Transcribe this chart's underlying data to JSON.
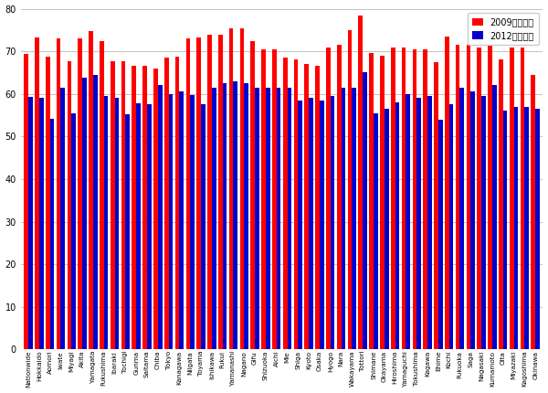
{
  "categories": [
    "Nationwide",
    "Hokkaido",
    "Aomori",
    "Iwate",
    "Miyagi",
    "Akita",
    "Yamagata",
    "Fukushima",
    "Ibaraki",
    "Tochigi",
    "Gunma",
    "Saitama",
    "Chiba",
    "Tokyo",
    "Kanagawa",
    "Niigata",
    "Toyama",
    "Ishikawa",
    "Fukui",
    "Yamanashi",
    "Nagano",
    "Gifu",
    "Shizuoka",
    "Aichi",
    "Mie",
    "Shiga",
    "Kyoto",
    "Osaka",
    "Hyogo",
    "Nara",
    "Wakayama",
    "Tottori",
    "Shimane",
    "Okayama",
    "Hiroshima",
    "Yamaguchi",
    "Tokushima",
    "Kagawa",
    "Ehime",
    "Kochi",
    "Fukuoka",
    "Saga",
    "Nagasaki",
    "Kumamoto",
    "Oita",
    "Miyazaki",
    "Kagoshima",
    "Okinawa"
  ],
  "values_2009": [
    69.3,
    73.2,
    68.8,
    73.0,
    67.6,
    73.0,
    74.8,
    72.5,
    67.6,
    67.6,
    66.5,
    66.5,
    66.0,
    68.5,
    68.7,
    73.0,
    73.2,
    74.0,
    74.0,
    75.5,
    75.5,
    72.5,
    70.5,
    70.5,
    68.5,
    68.0,
    67.0,
    66.5,
    71.0,
    71.5,
    75.0,
    78.5,
    69.5,
    69.0,
    71.0,
    71.0,
    70.5,
    70.5,
    67.5,
    73.5,
    71.5,
    71.5,
    71.0,
    71.5,
    68.0,
    71.0,
    71.0,
    64.5
  ],
  "values_2012": [
    59.3,
    59.2,
    54.2,
    61.5,
    55.5,
    63.8,
    64.5,
    59.5,
    59.2,
    55.2,
    57.8,
    57.5,
    62.0,
    60.0,
    60.5,
    59.8,
    57.5,
    61.5,
    62.5,
    63.0,
    62.5,
    61.5,
    61.5,
    61.5,
    61.5,
    58.5,
    59.0,
    58.5,
    59.5,
    61.5,
    61.5,
    65.2,
    55.5,
    56.5,
    58.0,
    60.0,
    59.2,
    59.5,
    54.0,
    57.5,
    61.5,
    60.5,
    59.5,
    62.0,
    56.0,
    57.0,
    57.0,
    56.5
  ],
  "color_2009": "#FF0000",
  "color_2012": "#0000CC",
  "legend_2009": "2009年投票率",
  "legend_2012": "2012年投票率",
  "ylim": [
    0,
    80
  ],
  "yticks": [
    0,
    10,
    20,
    30,
    40,
    50,
    60,
    70,
    80
  ],
  "bar_width": 0.4,
  "background_color": "#FFFFFF",
  "grid_color": "#AAAAAA"
}
